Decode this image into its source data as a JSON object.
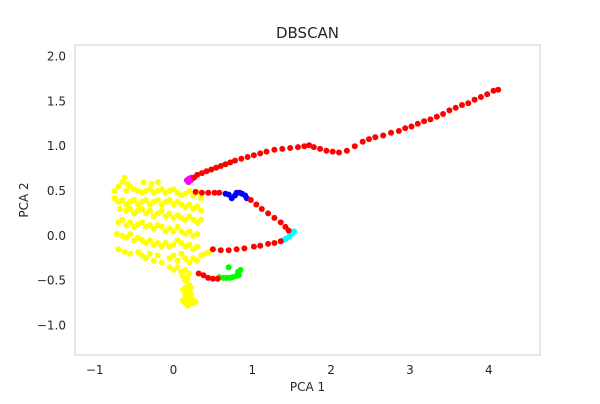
{
  "chart_data": {
    "type": "scatter",
    "title": "DBSCAN",
    "xlabel": "PCA 1",
    "ylabel": "PCA 2",
    "xlim": [
      -1.25,
      4.65
    ],
    "ylim": [
      -1.33,
      2.13
    ],
    "xticks": [
      -1,
      0,
      1,
      2,
      3,
      4
    ],
    "xtick_labels": [
      "−1",
      "0",
      "1",
      "2",
      "3",
      "4"
    ],
    "yticks": [
      -1.0,
      -0.5,
      0.0,
      0.5,
      1.0,
      1.5,
      2.0
    ],
    "ytick_labels": [
      "−1.0",
      "−0.5",
      "0.0",
      "0.5",
      "1.0",
      "1.5",
      "2.0"
    ],
    "grid": false,
    "series": [
      {
        "color": "#ffff00",
        "points": [
          [
            -0.62,
            0.65
          ],
          [
            -0.65,
            0.6
          ],
          [
            -0.58,
            0.58
          ],
          [
            -0.7,
            0.55
          ],
          [
            -0.55,
            0.55
          ],
          [
            -0.75,
            0.5
          ],
          [
            -0.6,
            0.5
          ],
          [
            -0.5,
            0.52
          ],
          [
            -0.45,
            0.5
          ],
          [
            -0.4,
            0.48
          ],
          [
            -0.35,
            0.5
          ],
          [
            -0.3,
            0.52
          ],
          [
            -0.25,
            0.48
          ],
          [
            -0.2,
            0.5
          ],
          [
            -0.15,
            0.52
          ],
          [
            -0.1,
            0.48
          ],
          [
            -0.05,
            0.5
          ],
          [
            0.0,
            0.52
          ],
          [
            0.05,
            0.48
          ],
          [
            0.1,
            0.45
          ],
          [
            0.15,
            0.47
          ],
          [
            0.2,
            0.5
          ],
          [
            0.25,
            0.45
          ],
          [
            0.3,
            0.48
          ],
          [
            0.35,
            0.42
          ],
          [
            -0.75,
            0.42
          ],
          [
            -0.7,
            0.38
          ],
          [
            -0.65,
            0.4
          ],
          [
            -0.6,
            0.35
          ],
          [
            -0.55,
            0.38
          ],
          [
            -0.5,
            0.4
          ],
          [
            -0.45,
            0.35
          ],
          [
            -0.4,
            0.38
          ],
          [
            -0.35,
            0.4
          ],
          [
            -0.3,
            0.35
          ],
          [
            -0.25,
            0.38
          ],
          [
            -0.2,
            0.4
          ],
          [
            -0.15,
            0.35
          ],
          [
            -0.1,
            0.38
          ],
          [
            -0.05,
            0.4
          ],
          [
            0.0,
            0.35
          ],
          [
            0.05,
            0.38
          ],
          [
            0.1,
            0.35
          ],
          [
            0.15,
            0.32
          ],
          [
            0.2,
            0.35
          ],
          [
            0.25,
            0.3
          ],
          [
            0.3,
            0.33
          ],
          [
            0.35,
            0.28
          ],
          [
            -0.68,
            0.3
          ],
          [
            -0.6,
            0.28
          ],
          [
            -0.55,
            0.3
          ],
          [
            -0.5,
            0.25
          ],
          [
            -0.45,
            0.28
          ],
          [
            -0.4,
            0.3
          ],
          [
            -0.35,
            0.25
          ],
          [
            -0.3,
            0.28
          ],
          [
            -0.25,
            0.22
          ],
          [
            -0.2,
            0.25
          ],
          [
            -0.15,
            0.28
          ],
          [
            -0.1,
            0.22
          ],
          [
            -0.05,
            0.25
          ],
          [
            0.0,
            0.2
          ],
          [
            0.05,
            0.23
          ],
          [
            0.1,
            0.2
          ],
          [
            0.15,
            0.18
          ],
          [
            0.2,
            0.22
          ],
          [
            0.25,
            0.18
          ],
          [
            0.3,
            0.15
          ],
          [
            0.35,
            0.18
          ],
          [
            -0.7,
            0.15
          ],
          [
            -0.65,
            0.18
          ],
          [
            -0.6,
            0.12
          ],
          [
            -0.55,
            0.15
          ],
          [
            -0.5,
            0.1
          ],
          [
            -0.45,
            0.13
          ],
          [
            -0.4,
            0.15
          ],
          [
            -0.35,
            0.1
          ],
          [
            -0.3,
            0.12
          ],
          [
            -0.25,
            0.08
          ],
          [
            -0.2,
            0.12
          ],
          [
            -0.15,
            0.1
          ],
          [
            -0.1,
            0.05
          ],
          [
            -0.05,
            0.08
          ],
          [
            0.0,
            0.05
          ],
          [
            0.05,
            0.1
          ],
          [
            0.1,
            0.05
          ],
          [
            0.15,
            0.02
          ],
          [
            0.2,
            0.05
          ],
          [
            0.25,
            0.0
          ],
          [
            0.3,
            0.02
          ],
          [
            -0.72,
            0.02
          ],
          [
            -0.65,
            0.0
          ],
          [
            -0.6,
            -0.02
          ],
          [
            -0.55,
            0.02
          ],
          [
            -0.5,
            -0.05
          ],
          [
            -0.45,
            -0.02
          ],
          [
            -0.4,
            -0.05
          ],
          [
            -0.35,
            -0.08
          ],
          [
            -0.3,
            -0.05
          ],
          [
            -0.25,
            -0.1
          ],
          [
            -0.2,
            -0.08
          ],
          [
            -0.15,
            -0.12
          ],
          [
            -0.1,
            -0.08
          ],
          [
            -0.05,
            -0.12
          ],
          [
            0.0,
            -0.1
          ],
          [
            0.05,
            -0.05
          ],
          [
            0.1,
            -0.08
          ],
          [
            0.15,
            -0.12
          ],
          [
            0.2,
            -0.1
          ],
          [
            0.25,
            -0.15
          ],
          [
            0.3,
            -0.12
          ],
          [
            -0.7,
            -0.15
          ],
          [
            -0.62,
            -0.18
          ],
          [
            -0.55,
            -0.2
          ],
          [
            -0.45,
            -0.18
          ],
          [
            -0.4,
            -0.22
          ],
          [
            -0.35,
            -0.25
          ],
          [
            -0.3,
            -0.2
          ],
          [
            -0.25,
            -0.28
          ],
          [
            -0.2,
            -0.22
          ],
          [
            -0.15,
            -0.3
          ],
          [
            -0.05,
            -0.25
          ],
          [
            0.0,
            -0.22
          ],
          [
            0.05,
            -0.28
          ],
          [
            0.1,
            -0.2
          ],
          [
            0.15,
            -0.25
          ],
          [
            0.2,
            -0.3
          ],
          [
            0.25,
            -0.25
          ],
          [
            0.3,
            -0.28
          ],
          [
            0.35,
            -0.22
          ],
          [
            0.4,
            -0.2
          ],
          [
            0.45,
            -0.18
          ],
          [
            -0.05,
            -0.35
          ],
          [
            0.0,
            -0.38
          ],
          [
            0.05,
            -0.35
          ],
          [
            0.1,
            -0.4
          ],
          [
            0.15,
            -0.38
          ],
          [
            0.2,
            -0.42
          ],
          [
            0.12,
            -0.45
          ],
          [
            0.15,
            -0.5
          ],
          [
            0.18,
            -0.48
          ],
          [
            0.2,
            -0.55
          ],
          [
            0.15,
            -0.58
          ],
          [
            0.12,
            -0.6
          ],
          [
            0.18,
            -0.62
          ],
          [
            0.22,
            -0.58
          ],
          [
            0.15,
            -0.65
          ],
          [
            0.18,
            -0.68
          ],
          [
            0.22,
            -0.65
          ],
          [
            0.15,
            -0.7
          ],
          [
            0.18,
            -0.72
          ],
          [
            0.22,
            -0.7
          ],
          [
            0.25,
            -0.72
          ],
          [
            0.15,
            -0.75
          ],
          [
            0.2,
            -0.76
          ],
          [
            0.25,
            -0.75
          ],
          [
            0.28,
            -0.74
          ],
          [
            0.12,
            -0.72
          ],
          [
            0.18,
            -0.78
          ],
          [
            -0.28,
            0.58
          ],
          [
            -0.2,
            0.6
          ],
          [
            -0.38,
            0.6
          ]
        ]
      },
      {
        "color": "#ff00ff",
        "points": [
          [
            0.17,
            0.62
          ],
          [
            0.2,
            0.64
          ],
          [
            0.23,
            0.65
          ],
          [
            0.19,
            0.6
          ],
          [
            0.22,
            0.62
          ]
        ]
      },
      {
        "color": "#0000ff",
        "points": [
          [
            0.66,
            0.47
          ],
          [
            0.7,
            0.46
          ],
          [
            0.74,
            0.42
          ],
          [
            0.78,
            0.45
          ],
          [
            0.8,
            0.48
          ],
          [
            0.84,
            0.48
          ],
          [
            0.87,
            0.47
          ],
          [
            0.91,
            0.45
          ],
          [
            0.93,
            0.42
          ]
        ]
      },
      {
        "color": "#00ffff",
        "points": [
          [
            1.39,
            -0.05
          ],
          [
            1.43,
            -0.03
          ],
          [
            1.47,
            -0.01
          ],
          [
            1.5,
            0.02
          ],
          [
            1.53,
            0.05
          ],
          [
            1.48,
            0.03
          ]
        ]
      },
      {
        "color": "#00ff00",
        "points": [
          [
            0.58,
            -0.46
          ],
          [
            0.63,
            -0.47
          ],
          [
            0.67,
            -0.47
          ],
          [
            0.71,
            -0.47
          ],
          [
            0.75,
            -0.46
          ],
          [
            0.79,
            -0.45
          ],
          [
            0.83,
            -0.44
          ],
          [
            0.85,
            -0.38
          ],
          [
            0.82,
            -0.4
          ],
          [
            0.7,
            -0.35
          ]
        ]
      },
      {
        "color": "#ff0000",
        "points": [
          [
            0.26,
            0.65
          ],
          [
            0.3,
            0.68
          ],
          [
            0.36,
            0.7
          ],
          [
            0.42,
            0.72
          ],
          [
            0.48,
            0.74
          ],
          [
            0.54,
            0.76
          ],
          [
            0.6,
            0.78
          ],
          [
            0.66,
            0.8
          ],
          [
            0.72,
            0.82
          ],
          [
            0.78,
            0.84
          ],
          [
            0.86,
            0.86
          ],
          [
            0.94,
            0.88
          ],
          [
            1.02,
            0.9
          ],
          [
            1.1,
            0.92
          ],
          [
            1.18,
            0.94
          ],
          [
            1.28,
            0.96
          ],
          [
            1.38,
            0.97
          ],
          [
            1.48,
            0.98
          ],
          [
            1.58,
            0.99
          ],
          [
            1.66,
            1.0
          ],
          [
            1.72,
            1.01
          ],
          [
            1.78,
            0.99
          ],
          [
            1.86,
            0.97
          ],
          [
            1.94,
            0.95
          ],
          [
            2.02,
            0.94
          ],
          [
            2.1,
            0.93
          ],
          [
            2.2,
            0.95
          ],
          [
            2.3,
            1.0
          ],
          [
            2.4,
            1.05
          ],
          [
            2.48,
            1.08
          ],
          [
            2.56,
            1.1
          ],
          [
            2.66,
            1.12
          ],
          [
            2.76,
            1.15
          ],
          [
            2.86,
            1.17
          ],
          [
            2.94,
            1.2
          ],
          [
            3.02,
            1.22
          ],
          [
            3.1,
            1.25
          ],
          [
            3.18,
            1.28
          ],
          [
            3.26,
            1.3
          ],
          [
            3.34,
            1.33
          ],
          [
            3.42,
            1.36
          ],
          [
            3.5,
            1.4
          ],
          [
            3.58,
            1.43
          ],
          [
            3.66,
            1.46
          ],
          [
            3.74,
            1.48
          ],
          [
            3.82,
            1.52
          ],
          [
            3.9,
            1.55
          ],
          [
            3.98,
            1.58
          ],
          [
            4.06,
            1.62
          ],
          [
            4.12,
            1.63
          ],
          [
            0.28,
            0.49
          ],
          [
            0.36,
            0.48
          ],
          [
            0.44,
            0.48
          ],
          [
            0.52,
            0.48
          ],
          [
            0.58,
            0.48
          ],
          [
            0.98,
            0.4
          ],
          [
            1.05,
            0.35
          ],
          [
            1.12,
            0.3
          ],
          [
            1.2,
            0.25
          ],
          [
            1.28,
            0.2
          ],
          [
            1.36,
            0.15
          ],
          [
            1.42,
            0.1
          ],
          [
            1.46,
            0.06
          ],
          [
            1.36,
            -0.06
          ],
          [
            1.28,
            -0.08
          ],
          [
            1.2,
            -0.09
          ],
          [
            1.1,
            -0.11
          ],
          [
            1.02,
            -0.12
          ],
          [
            0.9,
            -0.14
          ],
          [
            0.8,
            -0.15
          ],
          [
            0.7,
            -0.16
          ],
          [
            0.6,
            -0.16
          ],
          [
            0.5,
            -0.15
          ],
          [
            0.32,
            -0.42
          ],
          [
            0.38,
            -0.44
          ],
          [
            0.44,
            -0.47
          ],
          [
            0.5,
            -0.48
          ],
          [
            0.56,
            -0.48
          ]
        ]
      }
    ]
  }
}
